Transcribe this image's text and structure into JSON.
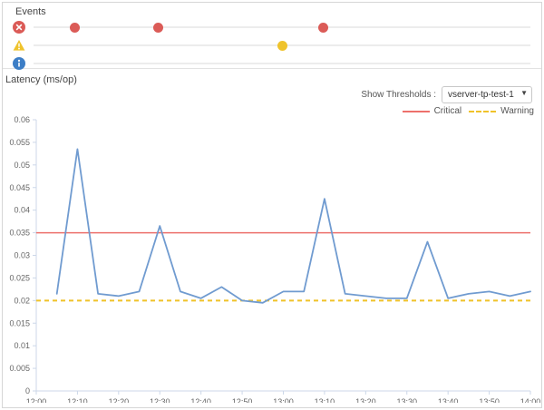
{
  "panels": {
    "events": {
      "title": "Events",
      "lanes": [
        {
          "name": "error",
          "icon": "error-circle-icon",
          "color": "#db5b57",
          "events": [
            "12:10",
            "12:30",
            "13:10"
          ]
        },
        {
          "name": "warning",
          "icon": "warning-triangle-icon",
          "color": "#efc32c",
          "events": [
            "13:00"
          ]
        },
        {
          "name": "info",
          "icon": "info-circle-icon",
          "color": "#3d7ec6",
          "events": []
        }
      ]
    },
    "latency": {
      "title": "Latency (ms/op)",
      "controls": {
        "label": "Show Thresholds :",
        "selected": "vserver-tp-test-1",
        "caret_icon": "chevron-down-icon"
      },
      "legend": [
        {
          "label": "Critical",
          "color": "#ed706b",
          "style": "solid"
        },
        {
          "label": "Warning",
          "color": "#f0c229",
          "style": "dashed"
        }
      ]
    }
  },
  "chart_data": {
    "type": "line",
    "title": "Latency (ms/op)",
    "x": [
      "12:05",
      "12:10",
      "12:15",
      "12:20",
      "12:25",
      "12:30",
      "12:35",
      "12:40",
      "12:45",
      "12:50",
      "12:55",
      "13:00",
      "13:05",
      "13:10",
      "13:15",
      "13:20",
      "13:25",
      "13:30",
      "13:35",
      "13:40",
      "13:45",
      "13:50",
      "13:55",
      "14:00"
    ],
    "values": [
      0.0215,
      0.0535,
      0.0215,
      0.021,
      0.022,
      0.0365,
      0.022,
      0.0205,
      0.023,
      0.02,
      0.0195,
      0.022,
      0.022,
      0.0425,
      0.0215,
      0.021,
      0.0205,
      0.0205,
      0.033,
      0.0205,
      0.0215,
      0.022,
      0.021,
      0.022
    ],
    "series_color": "#709bd0",
    "axis_color": "#ccd7e8",
    "x_ticks": [
      "12:00",
      "12:10",
      "12:20",
      "12:30",
      "12:40",
      "12:50",
      "13:00",
      "13:10",
      "13:20",
      "13:30",
      "13:40",
      "13:50",
      "14:00"
    ],
    "y_ticks": [
      0.06,
      0.055,
      0.05,
      0.045,
      0.04,
      0.035,
      0.03,
      0.025,
      0.02,
      0.015,
      0.01,
      0.005,
      0
    ],
    "xlim": [
      "12:00",
      "14:00"
    ],
    "ylim": [
      0,
      0.06
    ],
    "grid": false,
    "legend_position": "top-right",
    "thresholds": [
      {
        "label": "Critical",
        "value": 0.035,
        "color": "#ed706b",
        "style": "solid"
      },
      {
        "label": "Warning",
        "value": 0.02,
        "color": "#f0c229",
        "style": "dashed"
      }
    ]
  }
}
